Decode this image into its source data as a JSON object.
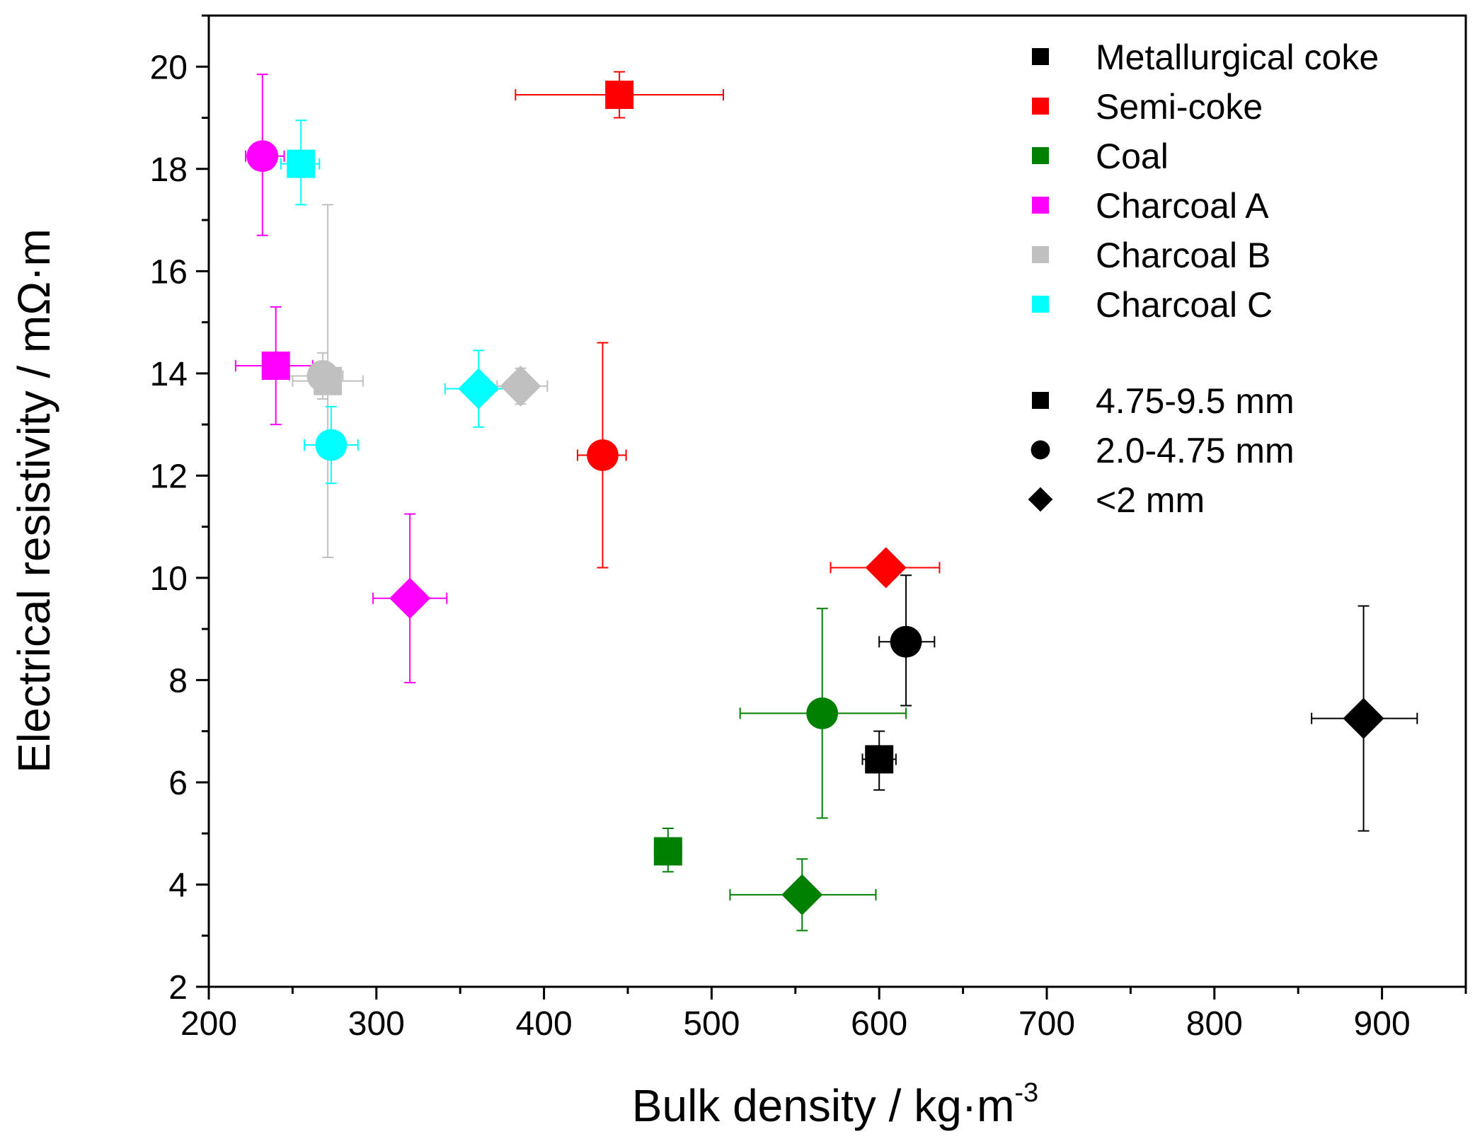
{
  "chart_data": {
    "type": "scatter",
    "title": "",
    "xlabel": "Bulk density / kg·m",
    "xlabel_sup": "-3",
    "ylabel": "Electrical resistivity / mΩ·m",
    "xlim": [
      200,
      950
    ],
    "ylim": [
      2,
      21
    ],
    "xticks": [
      200,
      300,
      400,
      500,
      600,
      700,
      800,
      900
    ],
    "yticks": [
      2,
      4,
      6,
      8,
      10,
      12,
      14,
      16,
      18,
      20
    ],
    "x_minor_step": 50,
    "y_minor_step": 1,
    "grid": false,
    "legend_position": "top-right",
    "materials": [
      {
        "key": "met",
        "name": "Metallurgical coke",
        "color": "#000000"
      },
      {
        "key": "semi",
        "name": "Semi-coke",
        "color": "#ff0000"
      },
      {
        "key": "coal",
        "name": "Coal",
        "color": "#008000"
      },
      {
        "key": "charA",
        "name": "Charcoal A",
        "color": "#ff00ff"
      },
      {
        "key": "charB",
        "name": "Charcoal B",
        "color": "#c0c0c0"
      },
      {
        "key": "charC",
        "name": "Charcoal C",
        "color": "#00ffff"
      }
    ],
    "sizes": [
      {
        "key": "square",
        "name": "4.75-9.5 mm"
      },
      {
        "key": "circle",
        "name": "2.0-4.75 mm"
      },
      {
        "key": "diamond",
        "name": "<2 mm"
      }
    ],
    "points": [
      {
        "material": "charB",
        "marker": "circle",
        "x": 268,
        "y": 13.95,
        "xerr": [
          248,
          280
        ],
        "yerr": [
          13.5,
          14.4
        ]
      },
      {
        "material": "charA",
        "marker": "circle",
        "x": 232,
        "y": 18.25,
        "xerr": [
          222,
          245
        ],
        "yerr": [
          16.7,
          19.85
        ]
      },
      {
        "material": "charA",
        "marker": "square",
        "x": 240,
        "y": 14.15,
        "xerr": [
          216,
          262
        ],
        "yerr": [
          13.0,
          15.3
        ]
      },
      {
        "material": "charB",
        "marker": "square",
        "x": 271,
        "y": 13.85,
        "xerr": [
          250,
          292
        ],
        "yerr": [
          10.4,
          17.3
        ]
      },
      {
        "material": "charC",
        "marker": "square",
        "x": 255,
        "y": 18.1,
        "xerr": [
          243,
          266
        ],
        "yerr": [
          17.3,
          18.95
        ]
      },
      {
        "material": "charC",
        "marker": "circle",
        "x": 273,
        "y": 12.6,
        "xerr": [
          257,
          289
        ],
        "yerr": [
          11.85,
          13.35
        ]
      },
      {
        "material": "charA",
        "marker": "diamond",
        "x": 320,
        "y": 9.6,
        "xerr": [
          298,
          342
        ],
        "yerr": [
          7.95,
          11.25
        ]
      },
      {
        "material": "charC",
        "marker": "diamond",
        "x": 361,
        "y": 13.7,
        "xerr": [
          341,
          381
        ],
        "yerr": [
          12.95,
          14.45
        ]
      },
      {
        "material": "charB",
        "marker": "diamond",
        "x": 386,
        "y": 13.75,
        "xerr": [
          372,
          402
        ],
        "yerr": [
          13.4,
          14.1
        ]
      },
      {
        "material": "semi",
        "marker": "square",
        "x": 445,
        "y": 19.45,
        "xerr": [
          383,
          507
        ],
        "yerr": [
          19.0,
          19.9
        ]
      },
      {
        "material": "semi",
        "marker": "circle",
        "x": 435,
        "y": 12.4,
        "xerr": [
          420,
          449
        ],
        "yerr": [
          10.2,
          14.6
        ]
      },
      {
        "material": "semi",
        "marker": "diamond",
        "x": 604,
        "y": 10.2,
        "xerr": [
          571,
          636
        ],
        "yerr": [
          10.05,
          10.35
        ]
      },
      {
        "material": "coal",
        "marker": "square",
        "x": 474,
        "y": 4.65,
        "xerr": [
          466,
          482
        ],
        "yerr": [
          4.25,
          5.1
        ]
      },
      {
        "material": "coal",
        "marker": "circle",
        "x": 566,
        "y": 7.35,
        "xerr": [
          517,
          616
        ],
        "yerr": [
          5.3,
          9.4
        ]
      },
      {
        "material": "coal",
        "marker": "diamond",
        "x": 554,
        "y": 3.8,
        "xerr": [
          511,
          598
        ],
        "yerr": [
          3.1,
          4.5
        ]
      },
      {
        "material": "met",
        "marker": "square",
        "x": 600,
        "y": 6.45,
        "xerr": [
          590,
          610
        ],
        "yerr": [
          5.85,
          7.0
        ]
      },
      {
        "material": "met",
        "marker": "circle",
        "x": 616,
        "y": 8.75,
        "xerr": [
          600,
          633
        ],
        "yerr": [
          7.5,
          10.05
        ]
      },
      {
        "material": "met",
        "marker": "diamond",
        "x": 889,
        "y": 7.25,
        "xerr": [
          858,
          921
        ],
        "yerr": [
          5.05,
          9.45
        ]
      }
    ]
  }
}
